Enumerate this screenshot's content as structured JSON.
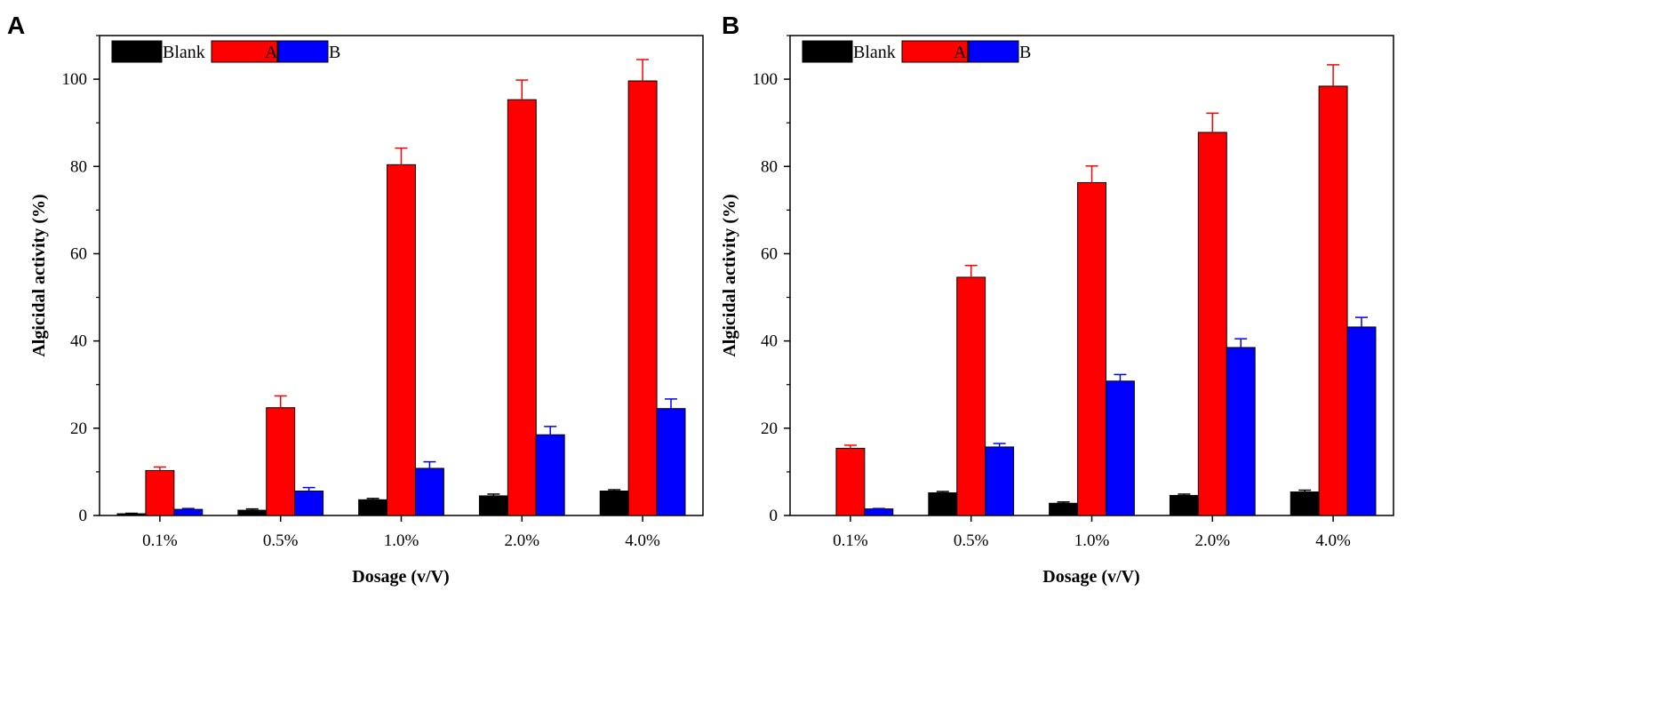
{
  "chart_data": [
    {
      "type": "bar",
      "panel": "A",
      "categories": [
        "0.1%",
        "0.5%",
        "1.0%",
        "2.0%",
        "4.0%"
      ],
      "series": [
        {
          "name": "Blank",
          "color": "#000000",
          "values": [
            0.4,
            1.2,
            3.6,
            4.5,
            5.6
          ],
          "errors": [
            0.1,
            0.3,
            0.3,
            0.4,
            0.3
          ]
        },
        {
          "name": "A",
          "color": "#ff0000",
          "values": [
            10.3,
            24.7,
            80.4,
            95.3,
            99.6
          ],
          "errors": [
            0.8,
            2.7,
            3.8,
            4.5,
            4.9
          ]
        },
        {
          "name": "B",
          "color": "#0000ff",
          "values": [
            1.4,
            5.6,
            10.8,
            18.5,
            24.5
          ],
          "errors": [
            0.2,
            0.8,
            1.5,
            1.9,
            2.2
          ]
        }
      ],
      "xlabel": "Dosage (v/V)",
      "ylabel": "Algicidal activity (%)",
      "ylim": [
        0,
        110
      ],
      "yticks": [
        "0",
        "20",
        "40",
        "60",
        "80",
        "100"
      ],
      "legend_position": "top-left"
    },
    {
      "type": "bar",
      "panel": "B",
      "categories": [
        "0.1%",
        "0.5%",
        "1.0%",
        "2.0%",
        "4.0%"
      ],
      "series": [
        {
          "name": "Blank",
          "color": "#000000",
          "values": [
            0,
            5.2,
            2.8,
            4.6,
            5.4
          ],
          "errors": [
            0,
            0.3,
            0.3,
            0.3,
            0.4
          ]
        },
        {
          "name": "A",
          "color": "#ff0000",
          "values": [
            15.4,
            54.6,
            76.3,
            87.8,
            98.4
          ],
          "errors": [
            0.7,
            2.7,
            3.8,
            4.4,
            4.9
          ]
        },
        {
          "name": "B",
          "color": "#0000ff",
          "values": [
            1.5,
            15.7,
            30.8,
            38.5,
            43.2
          ],
          "errors": [
            0.1,
            0.8,
            1.5,
            2.0,
            2.2
          ]
        }
      ],
      "xlabel": "Dosage (v/V)",
      "ylabel": "Algicidal activity (%)",
      "ylim": [
        0,
        110
      ],
      "yticks": [
        "0",
        "20",
        "40",
        "60",
        "80",
        "100"
      ],
      "legend_position": "top-left"
    }
  ]
}
